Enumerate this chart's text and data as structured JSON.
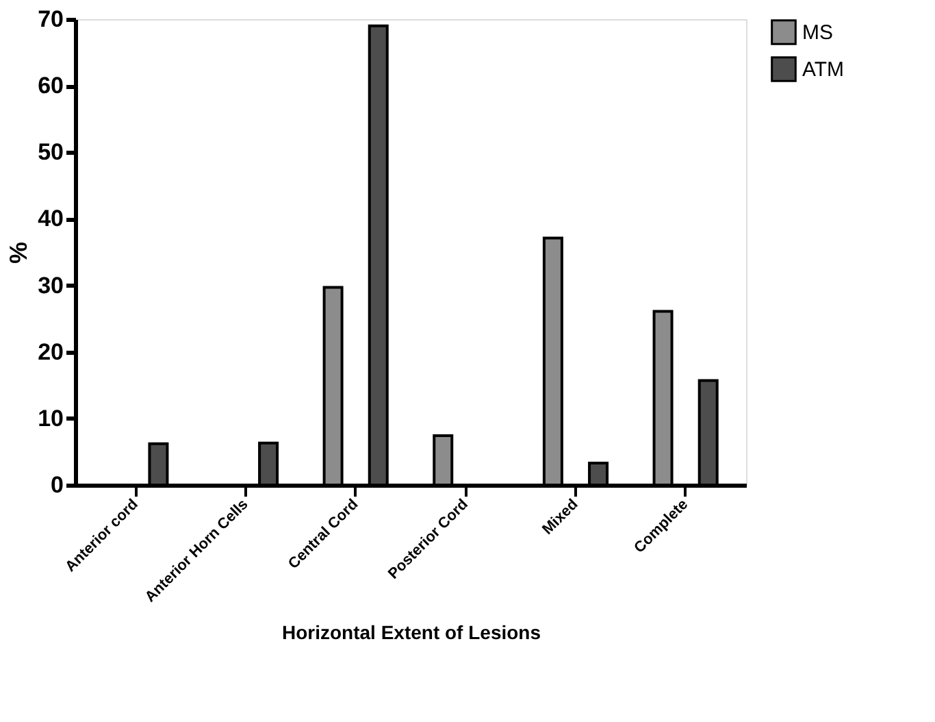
{
  "chart_data": {
    "type": "bar",
    "xlabel": "Horizontal Extent of Lesions",
    "ylabel": "%",
    "categories": [
      "Anterior cord",
      "Anterior Horn Cells",
      "Central Cord",
      "Posterior Cord",
      "Mixed",
      "Complete"
    ],
    "series": [
      {
        "name": "MS",
        "color": "#8c8c8c",
        "values": [
          null,
          null,
          29.7,
          7.4,
          37.1,
          26.1
        ]
      },
      {
        "name": "ATM",
        "color": "#4d4d4d",
        "values": [
          6.2,
          6.3,
          69,
          null,
          3.3,
          15.7
        ]
      }
    ],
    "ylim": [
      0,
      70
    ],
    "yticks": [
      0,
      10,
      20,
      30,
      40,
      50,
      60,
      70
    ],
    "grid": false,
    "legend": "top right"
  }
}
